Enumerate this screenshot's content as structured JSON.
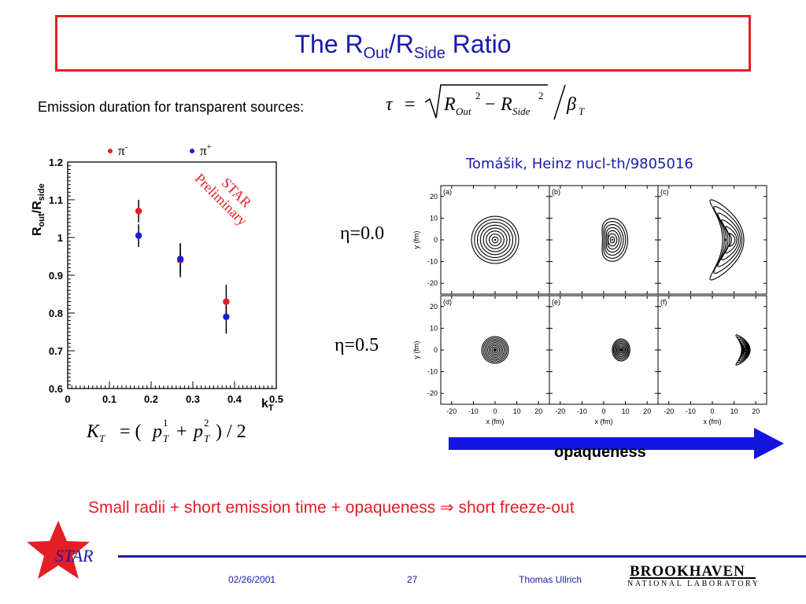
{
  "title": {
    "prefix": "The R",
    "sub1": "Out",
    "mid": "/R",
    "sub2": "Side",
    "suffix": " Ratio"
  },
  "emission_label": "Emission duration for transparent sources:",
  "reference": "Tomášik, Heinz nucl-th/9805016",
  "eta_labels": [
    "η=0.0",
    "η=0.5"
  ],
  "opaqueness_label": "opaqueness",
  "conclusion": "Small radii + short emission time + opaqueness ⇒ short  freeze-out",
  "footer": {
    "date": "02/26/2001",
    "page": "27",
    "author": "Thomas Ullrich",
    "star_logo": "STAR",
    "bnl_line1": "BROOKHAVEN",
    "bnl_line2": "NATIONAL LABORATORY"
  },
  "chart_data": {
    "type": "scatter",
    "ylabel": "Rout/Rside",
    "xlabel": "kT",
    "xlim": [
      0,
      0.5
    ],
    "ylim": [
      0.6,
      1.2
    ],
    "xticks": [
      "0",
      "0.1",
      "0.2",
      "0.3",
      "0.4",
      "0.5"
    ],
    "yticks": [
      "0.6",
      "0.7",
      "0.8",
      "0.9",
      "1",
      "1.1",
      "1.2"
    ],
    "legend": [
      "π-",
      "π+"
    ],
    "watermark": "STAR Preliminary",
    "colors": {
      "pi_minus": "#e41e25",
      "pi_plus": "#1a1ad8"
    },
    "series": [
      {
        "name": "π-",
        "points": [
          {
            "x": 0.17,
            "y": 1.07,
            "err": 0.03
          },
          {
            "x": 0.27,
            "y": 0.94,
            "err": 0.045
          },
          {
            "x": 0.38,
            "y": 0.83,
            "err": 0.045
          }
        ]
      },
      {
        "name": "π+",
        "points": [
          {
            "x": 0.17,
            "y": 1.005,
            "err": 0.03
          },
          {
            "x": 0.27,
            "y": 0.943,
            "err": 0.04
          },
          {
            "x": 0.38,
            "y": 0.79,
            "err": 0.045
          }
        ]
      }
    ]
  },
  "panels": {
    "labels": [
      "(a)",
      "(b)",
      "(c)",
      "(d)",
      "(e)",
      "(f)"
    ],
    "axis_ticks": [
      "20",
      "10",
      "0",
      "-10",
      "-20"
    ],
    "x_ticks": [
      "-20",
      "-10",
      "0",
      "10",
      "20"
    ],
    "xlabel": "x (fm)",
    "ylabel": "y (fm)"
  }
}
